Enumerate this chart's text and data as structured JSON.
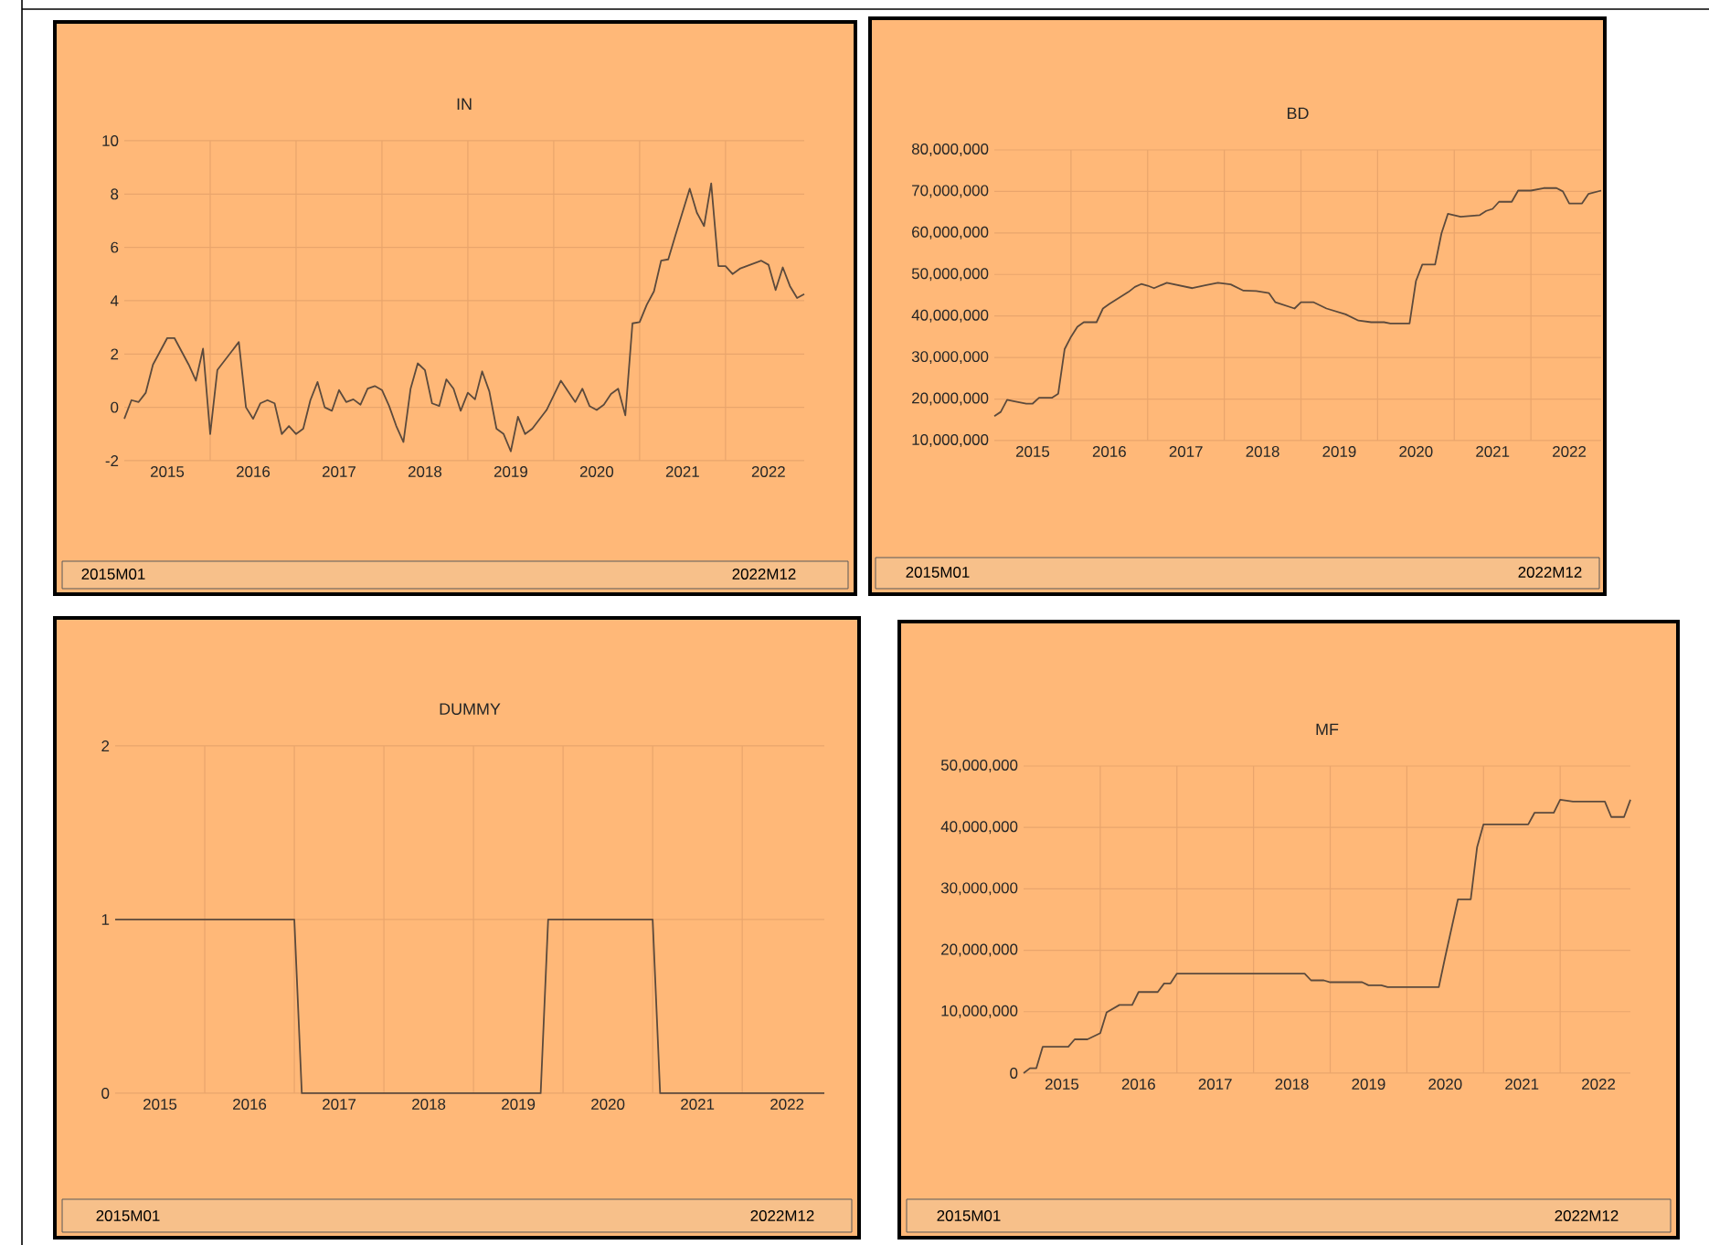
{
  "chart_data": [
    {
      "type": "line",
      "title": "IN",
      "color": "#5c4a3c",
      "grid": true,
      "xlim": [
        "2015-01",
        "2022-12"
      ],
      "ylim": [
        -2,
        10
      ],
      "yticks": [
        -2,
        0,
        2,
        4,
        6,
        8,
        10
      ],
      "xticks": [
        {
          "value": "2015-07",
          "label": "2015"
        },
        {
          "value": "2016-07",
          "label": "2016"
        },
        {
          "value": "2017-07",
          "label": "2017"
        },
        {
          "value": "2018-07",
          "label": "2018"
        },
        {
          "value": "2019-07",
          "label": "2019"
        },
        {
          "value": "2020-07",
          "label": "2020"
        },
        {
          "value": "2021-07",
          "label": "2021"
        },
        {
          "value": "2022-07",
          "label": "2022"
        },
        {
          "value": "2016-01",
          "label": null
        },
        {
          "value": "2017-01",
          "label": null
        },
        {
          "value": "2018-01",
          "label": null
        },
        {
          "value": "2019-01",
          "label": null
        },
        {
          "value": "2020-01",
          "label": null
        },
        {
          "value": "2021-01",
          "label": null
        },
        {
          "value": "2022-01",
          "label": null
        }
      ],
      "x": [
        "2015-01",
        "2015-02",
        "2015-03",
        "2015-04",
        "2015-05",
        "2015-07",
        "2015-08",
        "2015-10",
        "2015-11",
        "2015-12",
        "2016-01",
        "2016-02",
        "2016-05",
        "2016-06",
        "2016-07",
        "2016-08",
        "2016-09",
        "2016-10",
        "2016-11",
        "2016-12",
        "2017-01",
        "2017-02",
        "2017-03",
        "2017-04",
        "2017-05",
        "2017-06",
        "2017-07",
        "2017-08",
        "2017-09",
        "2017-10",
        "2017-11",
        "2017-12",
        "2018-01",
        "2018-02",
        "2018-03",
        "2018-04",
        "2018-05",
        "2018-06",
        "2018-07",
        "2018-08",
        "2018-09",
        "2018-10",
        "2018-11",
        "2018-12",
        "2019-01",
        "2019-02",
        "2019-03",
        "2019-04",
        "2019-05",
        "2019-06",
        "2019-07",
        "2019-08",
        "2019-09",
        "2019-10",
        "2019-12",
        "2020-02",
        "2020-04",
        "2020-05",
        "2020-06",
        "2020-07",
        "2020-08",
        "2020-09",
        "2020-10",
        "2020-11",
        "2020-12",
        "2021-01",
        "2021-02",
        "2021-03",
        "2021-04",
        "2021-05",
        "2021-06",
        "2021-08",
        "2021-09",
        "2021-10",
        "2021-11",
        "2021-12",
        "2022-01",
        "2022-02",
        "2022-03",
        "2022-06",
        "2022-07",
        "2022-08",
        "2022-09",
        "2022-10",
        "2022-11",
        "2022-12"
      ],
      "values": [
        -0.43,
        0.27,
        0.2,
        0.55,
        1.6,
        2.6,
        2.6,
        1.6,
        1.0,
        2.2,
        -1.0,
        1.4,
        2.45,
        0,
        -0.43,
        0.15,
        0.27,
        0.15,
        -1.0,
        -0.7,
        -1.0,
        -0.8,
        0.27,
        0.95,
        0,
        -0.13,
        0.65,
        0.2,
        0.3,
        0.1,
        0.7,
        0.8,
        0.65,
        0.05,
        -0.7,
        -1.3,
        0.7,
        1.65,
        1.4,
        0.15,
        0.05,
        1.05,
        0.7,
        -0.13,
        0.55,
        0.3,
        1.35,
        0.6,
        -0.8,
        -1.0,
        -1.65,
        -0.35,
        -1.0,
        -0.8,
        -0.1,
        1.0,
        0.2,
        0.7,
        0.05,
        -0.1,
        0.1,
        0.5,
        0.7,
        -0.3,
        3.15,
        3.2,
        3.85,
        4.35,
        5.5,
        5.55,
        6.45,
        8.2,
        7.3,
        6.8,
        8.4,
        5.3,
        5.3,
        5.0,
        5.2,
        5.5,
        5.35,
        4.4,
        5.25,
        4.55,
        4.1,
        4.25
      ],
      "annotations": [
        "2015M01",
        "2022M12"
      ]
    },
    {
      "type": "line",
      "title": "BD",
      "color": "#5c4a3c",
      "grid": true,
      "xlim": [
        "2015-01",
        "2022-12"
      ],
      "ylim": [
        10000000,
        80000000
      ],
      "yticks": [
        {
          "value": 10000000,
          "label": "10,000,000"
        },
        {
          "value": 20000000,
          "label": "20,000,000"
        },
        {
          "value": 30000000,
          "label": "30,000,000"
        },
        {
          "value": 40000000,
          "label": "40,000,000"
        },
        {
          "value": 50000000,
          "label": "50,000,000"
        },
        {
          "value": 60000000,
          "label": "60,000,000"
        },
        {
          "value": 70000000,
          "label": "70,000,000"
        },
        {
          "value": 80000000,
          "label": "80,000,000"
        }
      ],
      "xticks": [
        {
          "value": "2015-07",
          "label": "2015"
        },
        {
          "value": "2016-07",
          "label": "2016"
        },
        {
          "value": "2017-07",
          "label": "2017"
        },
        {
          "value": "2018-07",
          "label": "2018"
        },
        {
          "value": "2019-07",
          "label": "2019"
        },
        {
          "value": "2020-07",
          "label": "2020"
        },
        {
          "value": "2021-07",
          "label": "2021"
        },
        {
          "value": "2022-07",
          "label": "2022"
        },
        {
          "value": "2016-01",
          "label": null
        },
        {
          "value": "2017-01",
          "label": null
        },
        {
          "value": "2018-01",
          "label": null
        },
        {
          "value": "2019-01",
          "label": null
        },
        {
          "value": "2020-01",
          "label": null
        },
        {
          "value": "2021-01",
          "label": null
        },
        {
          "value": "2022-01",
          "label": null
        }
      ],
      "x": [
        "2015-01",
        "2015-02",
        "2015-03",
        "2015-04",
        "2015-06",
        "2015-07",
        "2015-08",
        "2015-10",
        "2015-11",
        "2015-12",
        "2016-01",
        "2016-02",
        "2016-03",
        "2016-05",
        "2016-06",
        "2016-07",
        "2016-10",
        "2016-11",
        "2016-12",
        "2017-01",
        "2017-02",
        "2017-04",
        "2017-08",
        "2017-10",
        "2017-12",
        "2018-02",
        "2018-04",
        "2018-06",
        "2018-08",
        "2018-09",
        "2018-12",
        "2019-01",
        "2019-03",
        "2019-05",
        "2019-08",
        "2019-10",
        "2019-12",
        "2020-02",
        "2020-03",
        "2020-06",
        "2020-07",
        "2020-08",
        "2020-10",
        "2020-11",
        "2020-12",
        "2021-02",
        "2021-05",
        "2021-06",
        "2021-07",
        "2021-08",
        "2021-10",
        "2021-11",
        "2022-01",
        "2022-03",
        "2022-05",
        "2022-06",
        "2022-07",
        "2022-09",
        "2022-10",
        "2022-12"
      ],
      "values": [
        15900000,
        16900000,
        19800000,
        19500000,
        18900000,
        18900000,
        20300000,
        20300000,
        21300000,
        32000000,
        35000000,
        37400000,
        38500000,
        38500000,
        41800000,
        42900000,
        45800000,
        47000000,
        47700000,
        47300000,
        46700000,
        48000000,
        46700000,
        47400000,
        48000000,
        47600000,
        46100000,
        46000000,
        45500000,
        43300000,
        41800000,
        43300000,
        43300000,
        41800000,
        40400000,
        38900000,
        38500000,
        38500000,
        38200000,
        38200000,
        48400000,
        52400000,
        52400000,
        59900000,
        64600000,
        63900000,
        64300000,
        65300000,
        65800000,
        67500000,
        67500000,
        70200000,
        70200000,
        70800000,
        70800000,
        70000000,
        67100000,
        67100000,
        69400000,
        70200000
      ],
      "annotations": [
        "2015M01",
        "2022M12"
      ]
    },
    {
      "type": "line",
      "title": "DUMMY",
      "color": "#5c4a3c",
      "grid": true,
      "xlim": [
        "2015-01",
        "2022-12"
      ],
      "ylim": [
        0,
        2
      ],
      "yticks": [
        0,
        1,
        2
      ],
      "xticks": [
        {
          "value": "2015-07",
          "label": "2015"
        },
        {
          "value": "2016-07",
          "label": "2016"
        },
        {
          "value": "2017-07",
          "label": "2017"
        },
        {
          "value": "2018-07",
          "label": "2018"
        },
        {
          "value": "2019-07",
          "label": "2019"
        },
        {
          "value": "2020-07",
          "label": "2020"
        },
        {
          "value": "2021-07",
          "label": "2021"
        },
        {
          "value": "2022-07",
          "label": "2022"
        },
        {
          "value": "2016-01",
          "label": null
        },
        {
          "value": "2017-01",
          "label": null
        },
        {
          "value": "2018-01",
          "label": null
        },
        {
          "value": "2019-01",
          "label": null
        },
        {
          "value": "2020-01",
          "label": null
        },
        {
          "value": "2021-01",
          "label": null
        },
        {
          "value": "2022-01",
          "label": null
        }
      ],
      "x": [
        "2015-01",
        "2017-01",
        "2017-02",
        "2019-10",
        "2019-11",
        "2021-01",
        "2021-02",
        "2022-12"
      ],
      "values": [
        1,
        1,
        0,
        0,
        1,
        1,
        0,
        0
      ],
      "annotations": [
        "2015M01",
        "2022M12"
      ]
    },
    {
      "type": "line",
      "title": "MF",
      "color": "#5c4a3c",
      "grid": true,
      "xlim": [
        "2015-01",
        "2022-12"
      ],
      "ylim": [
        0,
        50000000
      ],
      "yticks": [
        0,
        {
          "value": 10000000,
          "label": "10,000,000"
        },
        {
          "value": 20000000,
          "label": "20,000,000"
        },
        {
          "value": 30000000,
          "label": "30,000,000"
        },
        {
          "value": 40000000,
          "label": "40,000,000"
        },
        {
          "value": 50000000,
          "label": "50,000,000"
        }
      ],
      "xticks": [
        {
          "value": "2015-07",
          "label": "2015"
        },
        {
          "value": "2016-07",
          "label": "2016"
        },
        {
          "value": "2017-07",
          "label": "2017"
        },
        {
          "value": "2018-07",
          "label": "2018"
        },
        {
          "value": "2019-07",
          "label": "2019"
        },
        {
          "value": "2020-07",
          "label": "2020"
        },
        {
          "value": "2021-07",
          "label": "2021"
        },
        {
          "value": "2022-07",
          "label": "2022"
        },
        {
          "value": "2016-01",
          "label": null
        },
        {
          "value": "2017-01",
          "label": null
        },
        {
          "value": "2018-01",
          "label": null
        },
        {
          "value": "2019-01",
          "label": null
        },
        {
          "value": "2020-01",
          "label": null
        },
        {
          "value": "2021-01",
          "label": null
        },
        {
          "value": "2022-01",
          "label": null
        }
      ],
      "x": [
        "2015-01",
        "2015-02",
        "2015-03",
        "2015-04",
        "2015-08",
        "2015-09",
        "2015-11",
        "2015-12",
        "2016-01",
        "2016-02",
        "2016-04",
        "2016-06",
        "2016-07",
        "2016-10",
        "2016-11",
        "2016-12",
        "2017-01",
        "2018-09",
        "2018-10",
        "2018-12",
        "2019-01",
        "2019-06",
        "2019-07",
        "2019-09",
        "2019-10",
        "2020-06",
        "2020-07",
        "2020-09",
        "2020-11",
        "2020-12",
        "2021-01",
        "2021-08",
        "2021-09",
        "2021-12",
        "2022-01",
        "2022-03",
        "2022-08",
        "2022-09",
        "2022-11",
        "2022-12"
      ],
      "values": [
        0,
        800000,
        800000,
        4300000,
        4300000,
        5500000,
        5500000,
        6000000,
        6500000,
        9900000,
        11100000,
        11100000,
        13200000,
        13200000,
        14600000,
        14600000,
        16200000,
        16200000,
        15100000,
        15100000,
        14800000,
        14800000,
        14300000,
        14300000,
        14000000,
        14000000,
        18900000,
        28300000,
        28300000,
        36800000,
        40500000,
        40500000,
        42400000,
        42400000,
        44500000,
        44200000,
        44200000,
        41700000,
        41700000,
        44500000
      ],
      "annotations": [
        "2015M01",
        "2022M12"
      ]
    }
  ]
}
